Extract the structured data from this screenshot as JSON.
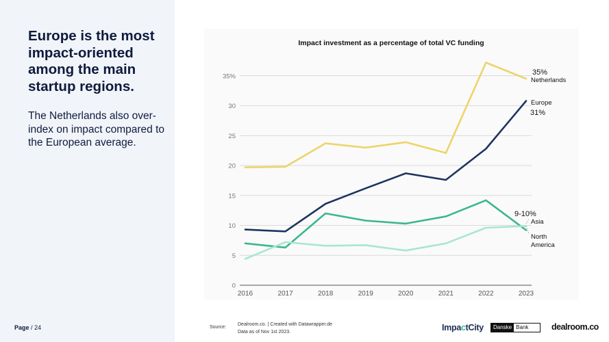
{
  "headline": "Europe is the most impact-oriented among the main startup regions.",
  "subtext": "The Netherlands also over-index on impact compared to the European average.",
  "page": {
    "label": "Page",
    "separator": "/",
    "number": "24"
  },
  "footer": {
    "source_label": "Source:",
    "source_line1": "Dealroom.co. | Created with Datawrapper.de",
    "source_line2": "Data as of Nov 1st 2023."
  },
  "logos": {
    "impactcity_part1": "Impa",
    "impactcity_accent": "c",
    "impactcity_part2": "tCity",
    "danske_part1": "Danske",
    "danske_part2": "Bank",
    "dealroom": "dealroom.co"
  },
  "chart_data": {
    "type": "line",
    "title": "Impact investment as a percentage of total VC funding",
    "x": [
      "2016",
      "2017",
      "2018",
      "2019",
      "2020",
      "2021",
      "2022",
      "2023"
    ],
    "y_ticks": [
      "0",
      "5",
      "10",
      "15",
      "20",
      "25",
      "30",
      "35%"
    ],
    "ylim": [
      0,
      37
    ],
    "grid": true,
    "series": [
      {
        "name": "Netherlands",
        "color": "#ecd46a",
        "values": [
          19.7,
          19.8,
          23.7,
          23.0,
          23.9,
          22.1,
          37.2,
          34.5
        ]
      },
      {
        "name": "Europe",
        "color": "#1d3461",
        "values": [
          9.3,
          9.0,
          13.6,
          16.2,
          18.7,
          17.6,
          22.8,
          30.8
        ]
      },
      {
        "name": "Asia",
        "color": "#3ab78b",
        "values": [
          7.0,
          6.3,
          12.0,
          10.8,
          10.3,
          11.5,
          14.2,
          9.2
        ]
      },
      {
        "name": "North America",
        "color": "#a9e6cf",
        "values": [
          4.4,
          7.2,
          6.6,
          6.7,
          5.8,
          7.0,
          9.6,
          9.9
        ]
      }
    ],
    "annotations": [
      {
        "id": "nl-value",
        "text": "35%"
      },
      {
        "id": "nl-name",
        "text": "Netherlands"
      },
      {
        "id": "eu-name",
        "text": "Europe"
      },
      {
        "id": "eu-value",
        "text": "31%"
      },
      {
        "id": "asia-value",
        "text": "9-10%"
      },
      {
        "id": "asia-name",
        "text": "Asia"
      },
      {
        "id": "na-name-1",
        "text": "North"
      },
      {
        "id": "na-name-2",
        "text": "America"
      }
    ]
  }
}
